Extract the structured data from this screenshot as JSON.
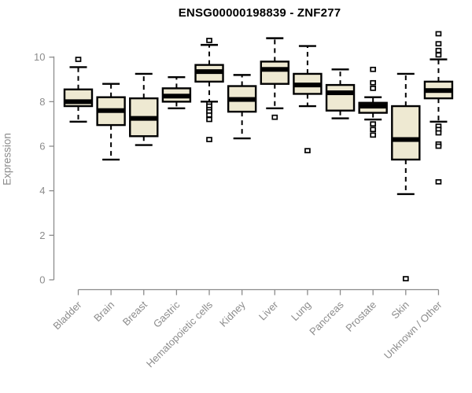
{
  "colors": {
    "box_fill": "#EEE9D2",
    "box_stroke": "#000000",
    "median": "#000000",
    "whisker": "#000000",
    "axis": "#8C8C8C",
    "title": "#000000",
    "background": "#FFFFFF"
  },
  "chart_data": {
    "type": "boxplot",
    "title": "ENSG00000198839 - ZNF277",
    "xlabel": "",
    "ylabel": "Expression",
    "ylim": [
      0,
      11.2
    ],
    "yticks": [
      0,
      2,
      4,
      6,
      8,
      10
    ],
    "grid": "off",
    "legend": "none",
    "categories": [
      "Bladder",
      "Brain",
      "Breast",
      "Gastric",
      "Hematopoietic cells",
      "Kidney",
      "Liver",
      "Lung",
      "Pancreas",
      "Prostate",
      "Skin",
      "Unknown / Other"
    ],
    "boxes": [
      {
        "category": "Bladder",
        "whisker_low": 7.1,
        "q1": 7.8,
        "median": 8.0,
        "q3": 8.55,
        "whisker_high": 9.55,
        "outliers": [
          9.9
        ]
      },
      {
        "category": "Brain",
        "whisker_low": 5.4,
        "q1": 6.95,
        "median": 7.6,
        "q3": 8.2,
        "whisker_high": 8.8,
        "outliers": []
      },
      {
        "category": "Breast",
        "whisker_low": 6.05,
        "q1": 6.45,
        "median": 7.25,
        "q3": 8.15,
        "whisker_high": 9.25,
        "outliers": []
      },
      {
        "category": "Gastric",
        "whisker_low": 7.7,
        "q1": 8.0,
        "median": 8.25,
        "q3": 8.6,
        "whisker_high": 9.1,
        "outliers": []
      },
      {
        "category": "Hematopoietic cells",
        "whisker_low": 8.0,
        "q1": 8.9,
        "median": 9.35,
        "q3": 9.65,
        "whisker_high": 10.55,
        "outliers": [
          10.75,
          7.9,
          7.8,
          7.65,
          7.55,
          7.4,
          7.2,
          6.3
        ]
      },
      {
        "category": "Kidney",
        "whisker_low": 6.35,
        "q1": 7.55,
        "median": 8.1,
        "q3": 8.7,
        "whisker_high": 9.2,
        "outliers": []
      },
      {
        "category": "Liver",
        "whisker_low": 7.7,
        "q1": 8.8,
        "median": 9.45,
        "q3": 9.8,
        "whisker_high": 10.85,
        "outliers": [
          7.3
        ]
      },
      {
        "category": "Lung",
        "whisker_low": 7.8,
        "q1": 8.35,
        "median": 8.75,
        "q3": 9.25,
        "whisker_high": 10.5,
        "outliers": [
          5.8
        ]
      },
      {
        "category": "Pancreas",
        "whisker_low": 7.25,
        "q1": 7.6,
        "median": 8.4,
        "q3": 8.75,
        "whisker_high": 9.45,
        "outliers": []
      },
      {
        "category": "Prostate",
        "whisker_low": 7.2,
        "q1": 7.5,
        "median": 7.8,
        "q3": 7.95,
        "whisker_high": 8.2,
        "outliers": [
          9.45,
          8.85,
          8.6,
          7.0,
          6.75,
          6.5
        ]
      },
      {
        "category": "Skin",
        "whisker_low": 3.85,
        "q1": 5.4,
        "median": 6.3,
        "q3": 7.8,
        "whisker_high": 9.25,
        "outliers": [
          0.05
        ]
      },
      {
        "category": "Unknown / Other",
        "whisker_low": 7.1,
        "q1": 8.15,
        "median": 8.5,
        "q3": 8.9,
        "whisker_high": 9.9,
        "outliers": [
          11.05,
          10.6,
          10.3,
          10.1,
          6.9,
          6.75,
          6.6,
          6.1,
          6.0,
          4.4
        ]
      }
    ]
  }
}
